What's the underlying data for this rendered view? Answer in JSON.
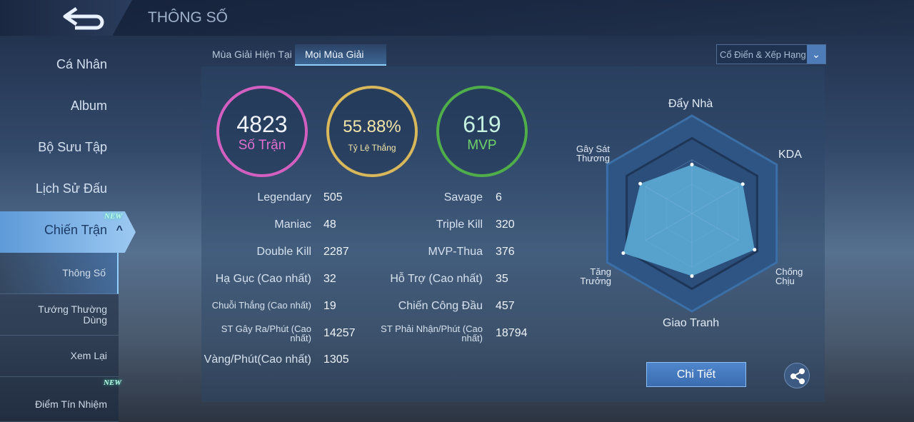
{
  "header": {
    "title": "THÔNG SỐ",
    "back_icon": "back-arrow-icon"
  },
  "sidebar": {
    "items": [
      "Cá Nhân",
      "Album",
      "Bộ Sưu Tập",
      "Lịch Sử Đấu"
    ],
    "active": {
      "label": "Chiến Trận",
      "badge": "NEW"
    },
    "sub": [
      {
        "label": "Thông Số"
      },
      {
        "label": "Tướng Thường Dùng"
      },
      {
        "label": "Xem Lại"
      },
      {
        "label": "Điểm Tín Nhiệm",
        "badge": "NEW"
      }
    ]
  },
  "tabs": [
    "Mùa Giải Hiện Tại",
    "Mọi Mùa Giải"
  ],
  "mode_select": {
    "value": "Cổ Điển & Xếp Hạng"
  },
  "rings": [
    {
      "value": "4823",
      "label": "Số Trận",
      "color": "#d35fc0"
    },
    {
      "value": "55.88%",
      "label": "Tỷ Lệ Thắng",
      "color": "#d8b85a"
    },
    {
      "value": "619",
      "label": "MVP",
      "color": "#4fae4a"
    }
  ],
  "stats_left": [
    {
      "label": "Legendary",
      "value": "505"
    },
    {
      "label": "Maniac",
      "value": "48"
    },
    {
      "label": "Double Kill",
      "value": "2287"
    },
    {
      "label": "Hạ Gục (Cao nhất)",
      "value": "32"
    },
    {
      "label": "Chuỗi Thắng (Cao nhất)",
      "value": "19"
    },
    {
      "label": "ST Gây Ra/Phút (Cao nhất)",
      "value": "14257"
    },
    {
      "label": "Vàng/Phút(Cao nhất)",
      "value": "1305"
    }
  ],
  "stats_right": [
    {
      "label": "Savage",
      "value": "6"
    },
    {
      "label": "Triple Kill",
      "value": "320"
    },
    {
      "label": "MVP-Thua",
      "value": "376"
    },
    {
      "label": "Hỗ Trợ (Cao nhất)",
      "value": "35"
    },
    {
      "label": "Chiến Công Đầu",
      "value": "457"
    },
    {
      "label": "ST Phải Nhận/Phút (Cao nhất)",
      "value": "18794"
    }
  ],
  "chart_data": {
    "type": "radar",
    "axes": [
      "Đẩy Nhà",
      "KDA",
      "Chống Chịu",
      "Giao Tranh",
      "Tăng Trưởng",
      "Gây Sát Thương"
    ],
    "values": [
      0.5,
      0.6,
      0.74,
      0.64,
      0.81,
      0.61
    ],
    "range": [
      0,
      1
    ],
    "fill_color": "#5fb2dc"
  },
  "detail_button": "Chi Tiết",
  "share_icon": "share-icon"
}
